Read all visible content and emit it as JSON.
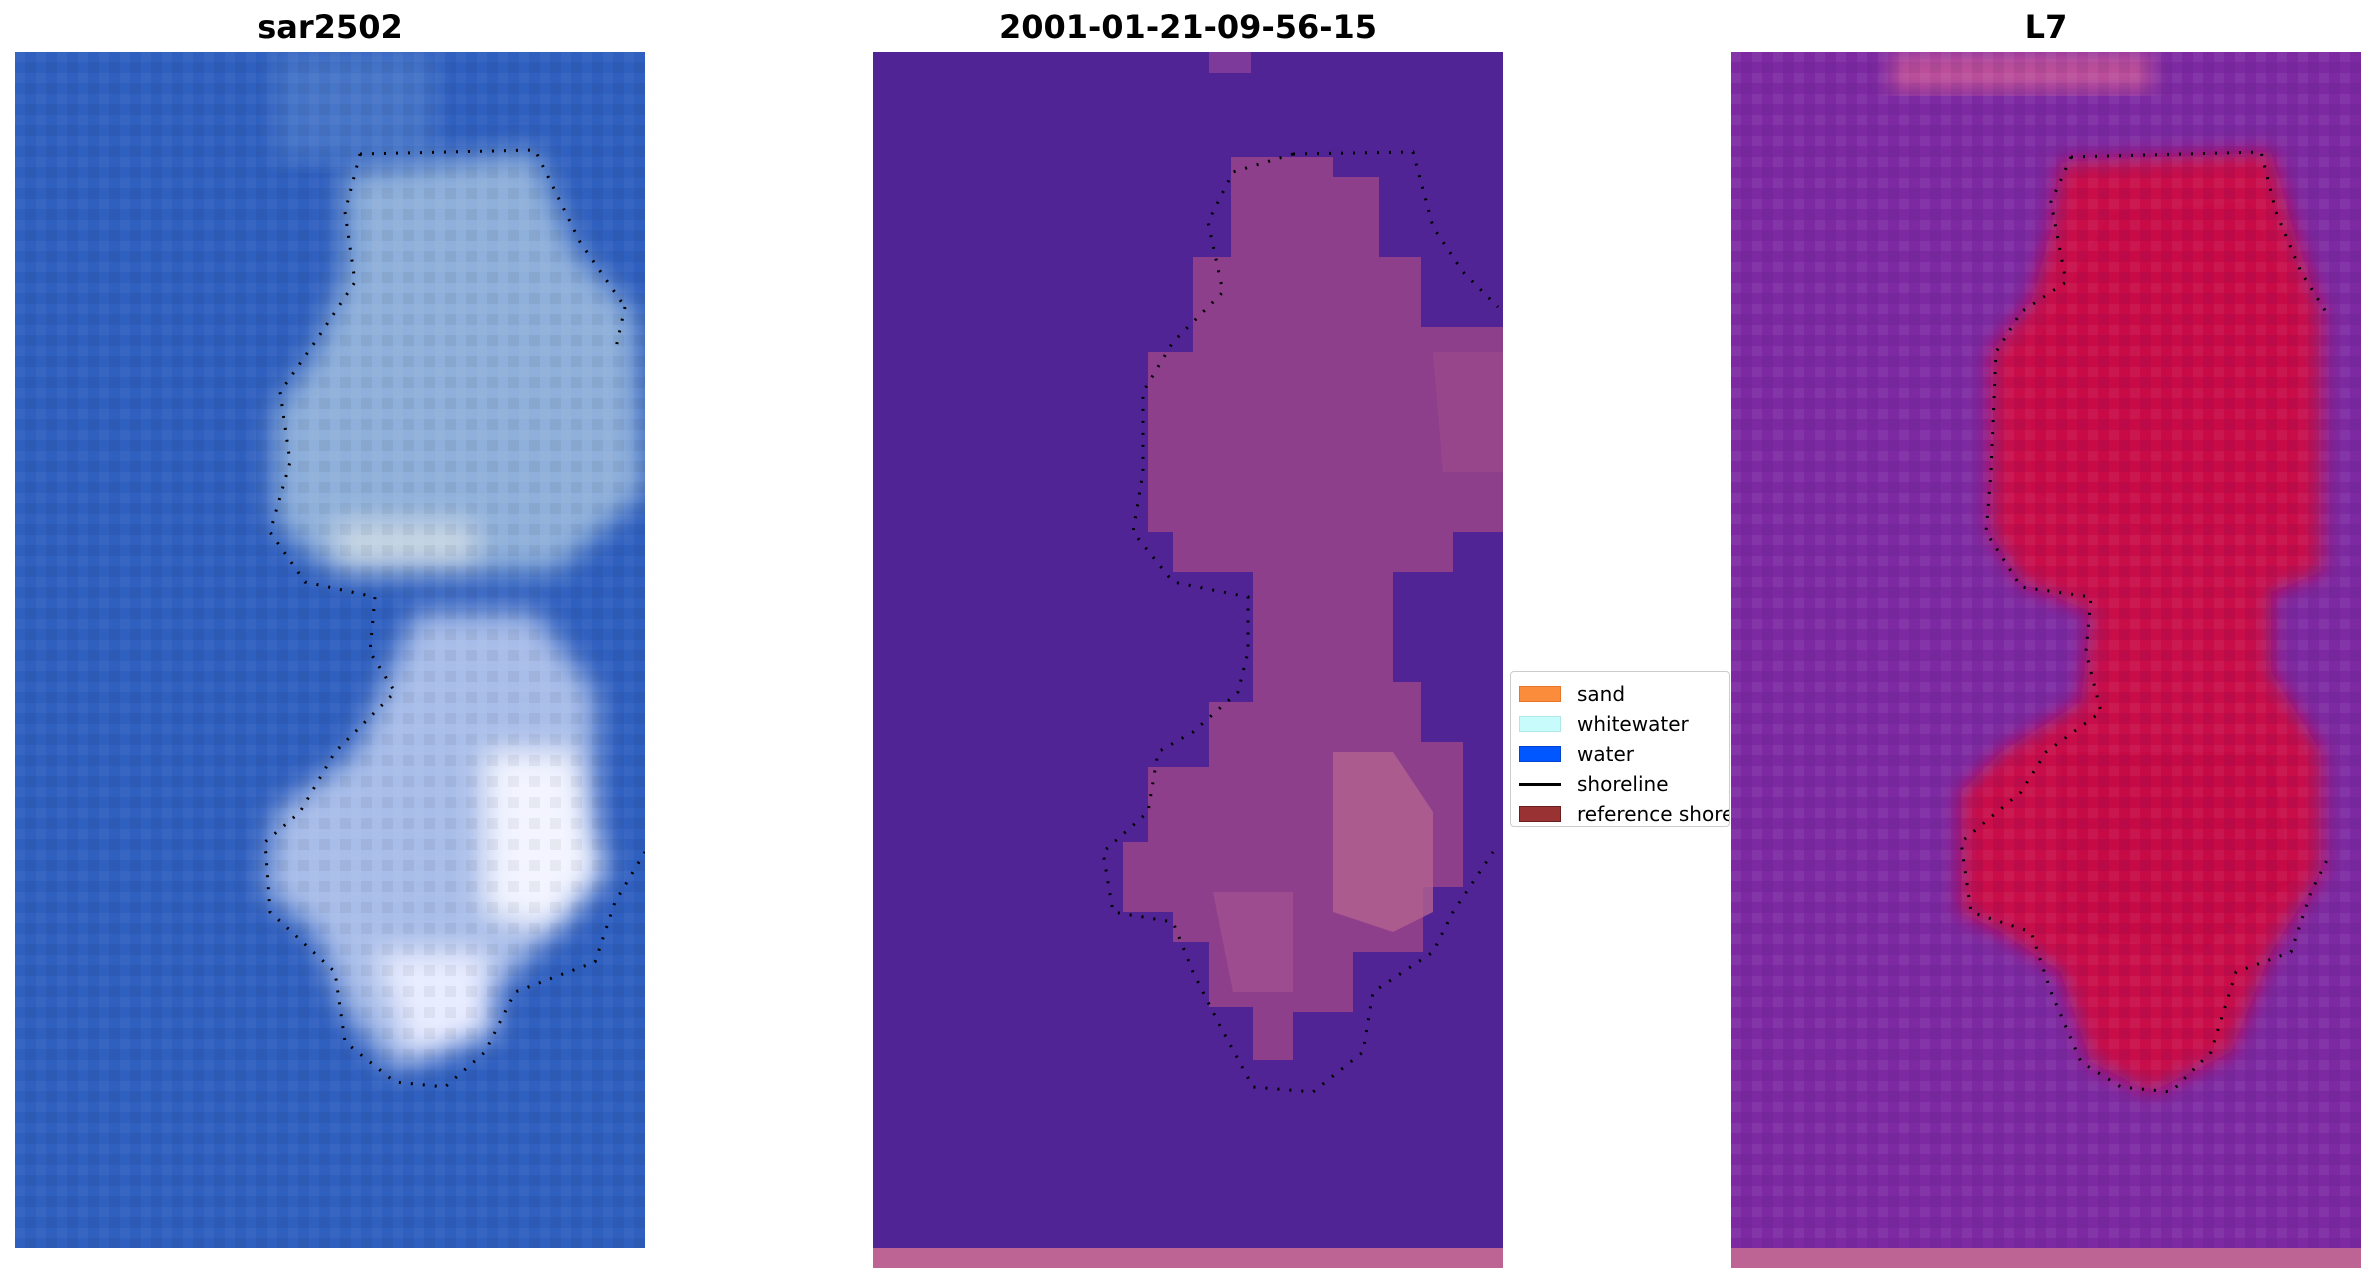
{
  "panels": [
    {
      "title": "sar2502"
    },
    {
      "title": "2001-01-21-09-56-15"
    },
    {
      "title": "L7"
    }
  ],
  "legend": {
    "items": [
      {
        "label": "sand",
        "color": "#fb8c3c",
        "kind": "patch"
      },
      {
        "label": "whitewater",
        "color": "#c8fcfc",
        "kind": "patch"
      },
      {
        "label": "water",
        "color": "#0056ff",
        "kind": "patch"
      },
      {
        "label": "shoreline",
        "color": "#000000",
        "kind": "line"
      },
      {
        "label": "reference shoreline",
        "color": "#993333",
        "kind": "patch"
      }
    ]
  },
  "colors": {
    "rgb_water": "#2f5fbf",
    "classified_water": "#512495",
    "classified_land": "#8e3f8c",
    "classified_strip": "#bd6494",
    "index_background": "#7d2aa2",
    "index_land": "#c8104a"
  }
}
